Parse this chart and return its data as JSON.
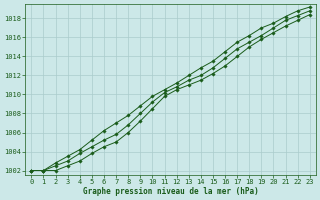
{
  "title": "",
  "xlabel": "Graphe pression niveau de la mer (hPa)",
  "background_color": "#cce8e8",
  "grid_color": "#aacccc",
  "line_color": "#1a5c1a",
  "x_values": [
    0,
    1,
    2,
    3,
    4,
    5,
    6,
    7,
    8,
    9,
    10,
    11,
    12,
    13,
    14,
    15,
    16,
    17,
    18,
    19,
    20,
    21,
    22,
    23
  ],
  "y_main": [
    1002.0,
    1002.0,
    1002.5,
    1003.0,
    1003.8,
    1004.5,
    1005.2,
    1005.8,
    1006.8,
    1008.0,
    1009.2,
    1010.2,
    1010.8,
    1011.5,
    1012.0,
    1012.8,
    1013.8,
    1014.8,
    1015.5,
    1016.2,
    1017.0,
    1017.8,
    1018.3,
    1018.8
  ],
  "y_upper": [
    1002.0,
    1002.0,
    1002.8,
    1003.5,
    1004.2,
    1005.2,
    1006.2,
    1007.0,
    1007.8,
    1008.8,
    1009.8,
    1010.5,
    1011.2,
    1012.0,
    1012.8,
    1013.5,
    1014.5,
    1015.5,
    1016.2,
    1017.0,
    1017.5,
    1018.2,
    1018.8,
    1019.2
  ],
  "y_lower": [
    1002.0,
    1002.0,
    1002.0,
    1002.5,
    1003.0,
    1003.8,
    1004.5,
    1005.0,
    1006.0,
    1007.2,
    1008.5,
    1009.8,
    1010.5,
    1011.0,
    1011.5,
    1012.2,
    1013.0,
    1014.0,
    1015.0,
    1015.8,
    1016.5,
    1017.2,
    1017.8,
    1018.4
  ],
  "ylim": [
    1001.5,
    1019.5
  ],
  "xlim": [
    -0.5,
    23.5
  ],
  "yticks": [
    1002,
    1004,
    1006,
    1008,
    1010,
    1012,
    1014,
    1016,
    1018
  ],
  "xticks": [
    0,
    1,
    2,
    3,
    4,
    5,
    6,
    7,
    8,
    9,
    10,
    11,
    12,
    13,
    14,
    15,
    16,
    17,
    18,
    19,
    20,
    21,
    22,
    23
  ]
}
